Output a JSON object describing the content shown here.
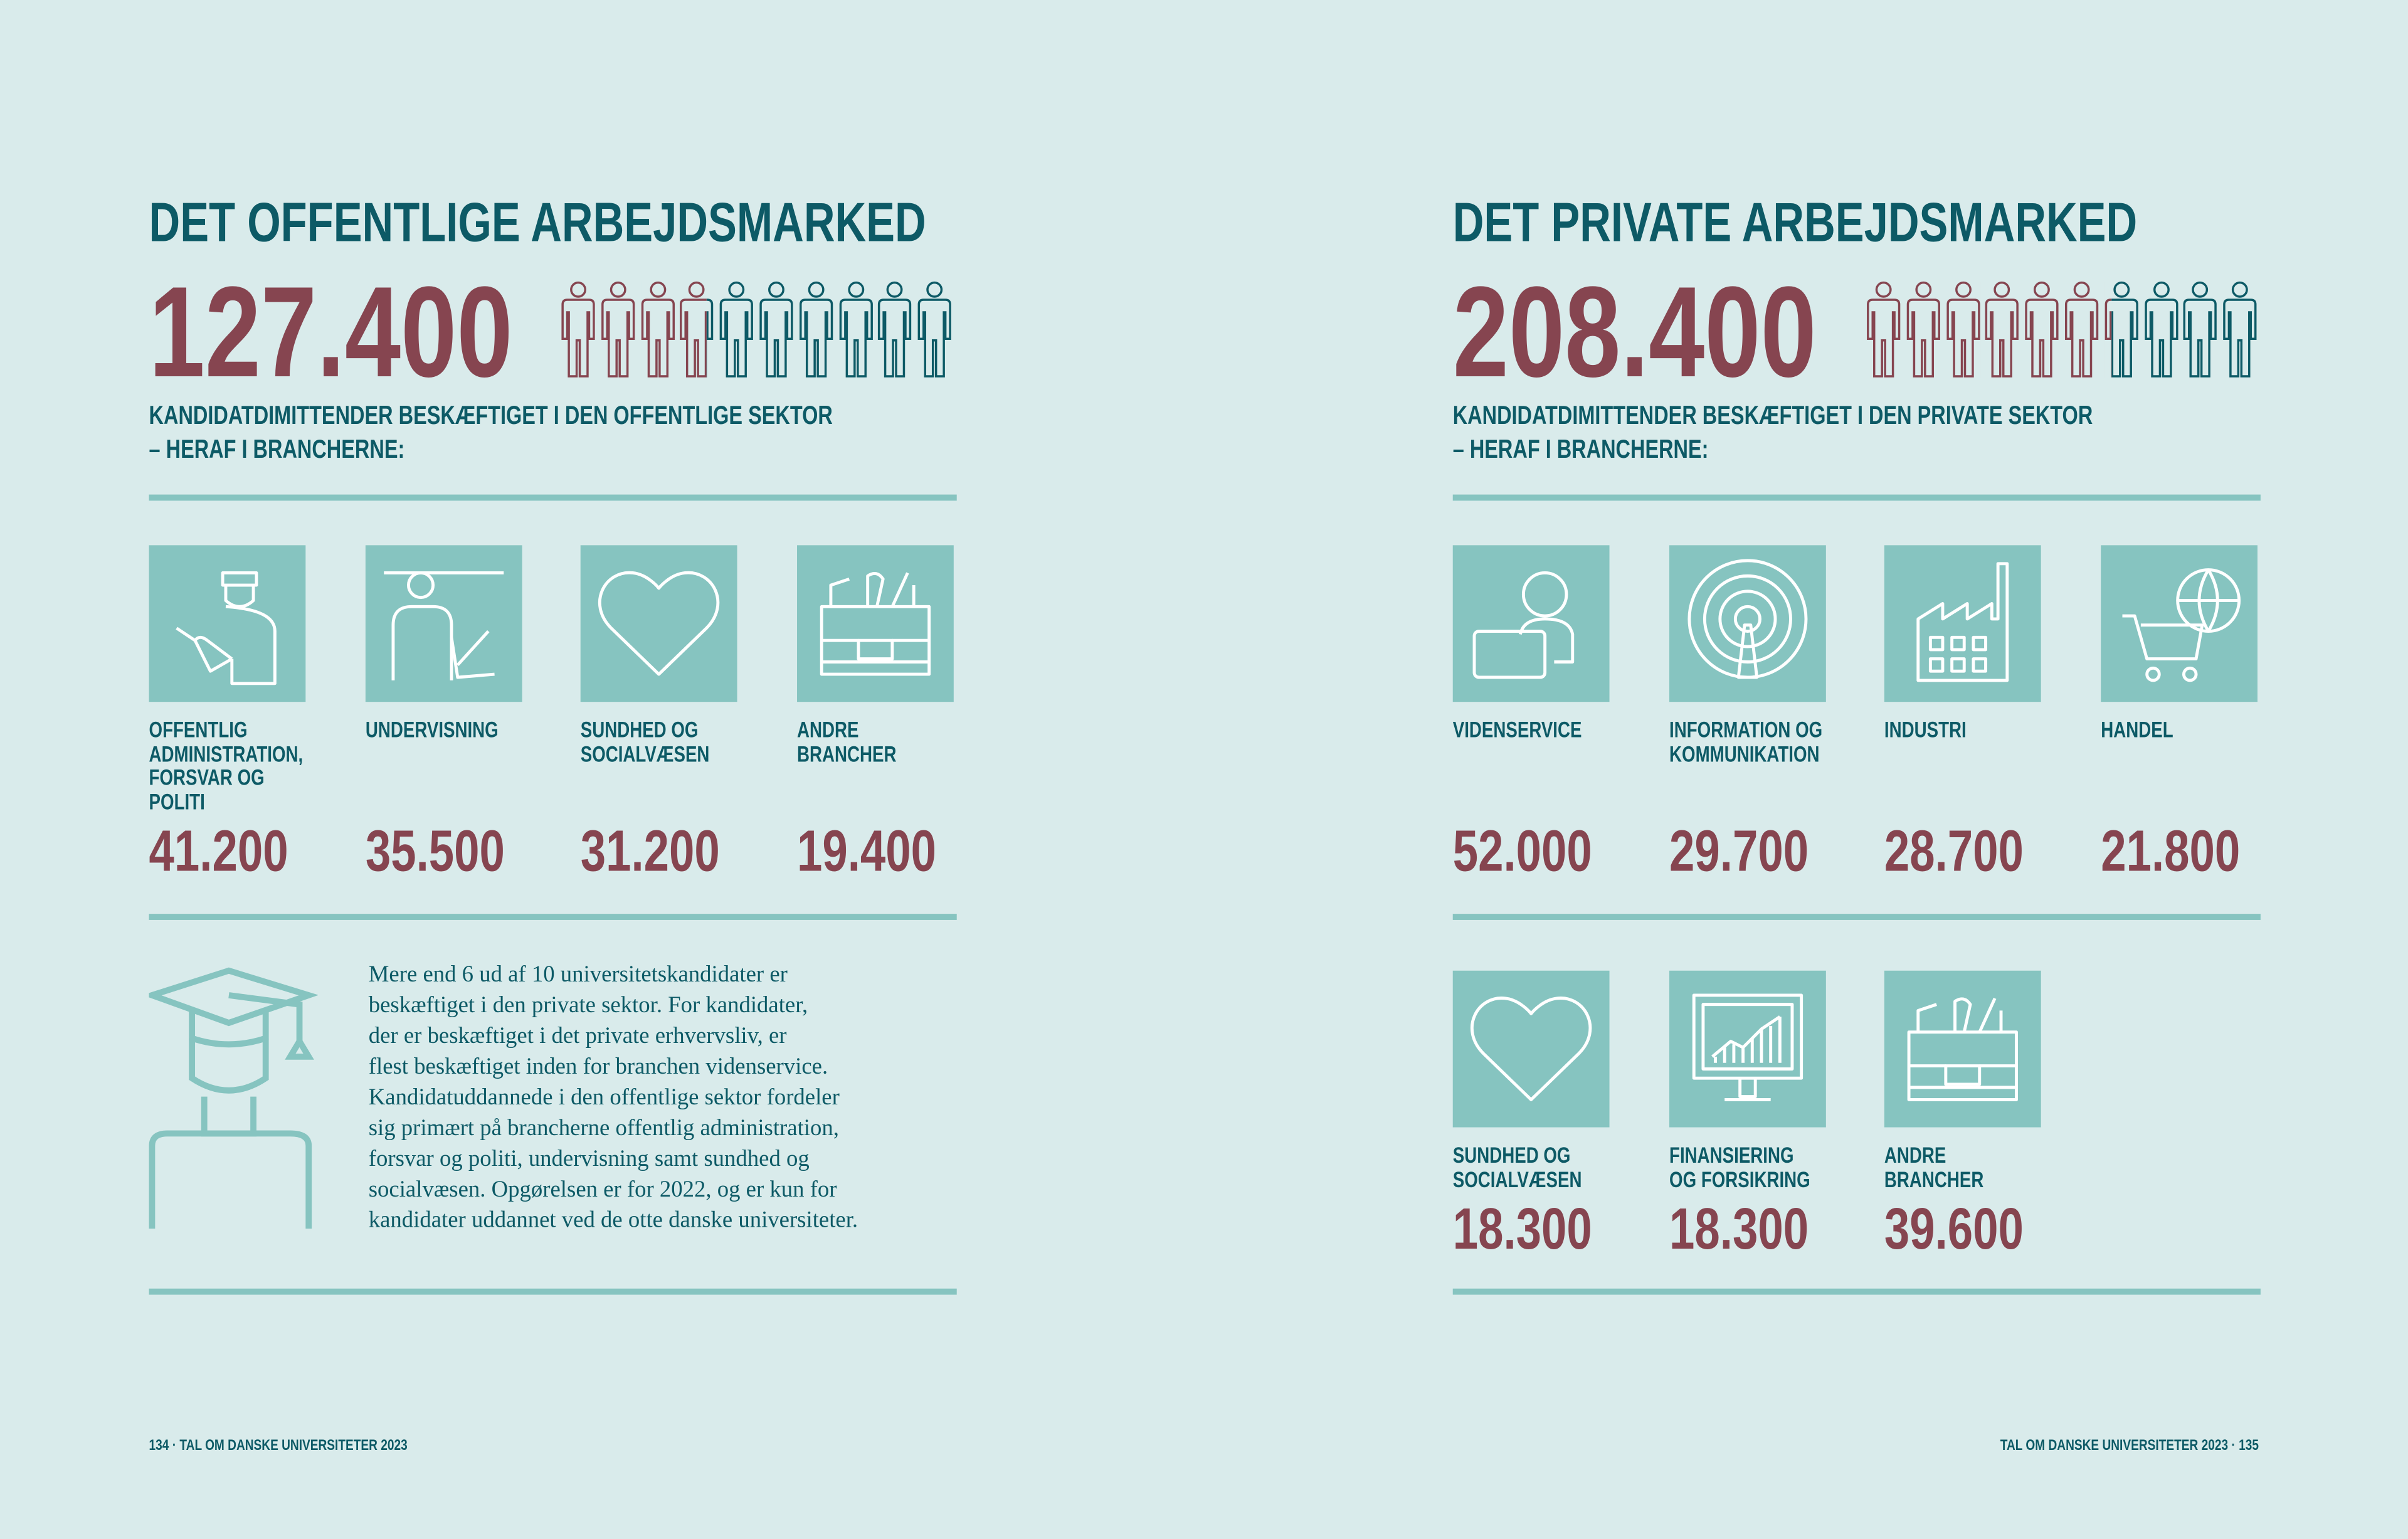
{
  "left": {
    "title": "DET OFFENTLIGE ARBEJDSMARKED",
    "total": "127.400",
    "subtitle": [
      "KANDIDATDIMITTENDER BESKÆFTIGET I DEN OFFENTLIGE SEKTOR",
      "– HERAF I BRANCHERNE:"
    ],
    "sectors": [
      {
        "label": [
          "OFFENTLIG",
          "ADMINISTRATION,",
          "FORSVAR OG",
          "POLITI"
        ],
        "value": "41.200"
      },
      {
        "label": [
          "UNDERVISNING"
        ],
        "value": "35.500"
      },
      {
        "label": [
          "SUNDHED OG",
          "SOCIALVÆSEN"
        ],
        "value": "31.200"
      },
      {
        "label": [
          "ANDRE",
          "BRANCHER"
        ],
        "value": "19.400"
      }
    ],
    "text": [
      "Mere end 6 ud af 10 universitetskandidater er",
      "beskæftiget i den private sektor. For kandidater,",
      "der er beskæftiget i det private erhvervsliv, er",
      "flest beskæftiget inden for branchen videnservice.",
      "Kandidatuddannede i den offentlige sektor fordeler",
      "sig primært på brancherne offentlig administration,",
      "forsvar og politi, undervisning samt sundhed og",
      "socialvæsen. Opgørelsen er for 2022, og er kun for",
      "kandidater uddannet ved de otte danske universiteter."
    ],
    "footer": "134 · TAL OM DANSKE UNIVERSITETER 2023"
  },
  "right": {
    "title": "DET PRIVATE ARBEJDSMARKED",
    "total": "208.400",
    "subtitle": [
      "KANDIDATDIMITTENDER BESKÆFTIGET I DEN PRIVATE SEKTOR",
      "– HERAF I BRANCHERNE:"
    ],
    "sectors": [
      {
        "label": [
          "VIDENSERVICE"
        ],
        "value": "52.000"
      },
      {
        "label": [
          "INFORMATION OG",
          "KOMMUNIKATION"
        ],
        "value": "29.700"
      },
      {
        "label": [
          "INDUSTRI"
        ],
        "value": "28.700"
      },
      {
        "label": [
          "HANDEL"
        ],
        "value": "21.800"
      },
      {
        "label": [
          "SUNDHED OG",
          "SOCIALVÆSEN"
        ],
        "value": "18.300"
      },
      {
        "label": [
          "FINANSIERING",
          "OG FORSIKRING"
        ],
        "value": "18.300"
      },
      {
        "label": [
          "ANDRE",
          "BRANCHER"
        ],
        "value": "39.600"
      }
    ],
    "footer": "TAL OM DANSKE UNIVERSITETER 2023 · 135"
  }
}
